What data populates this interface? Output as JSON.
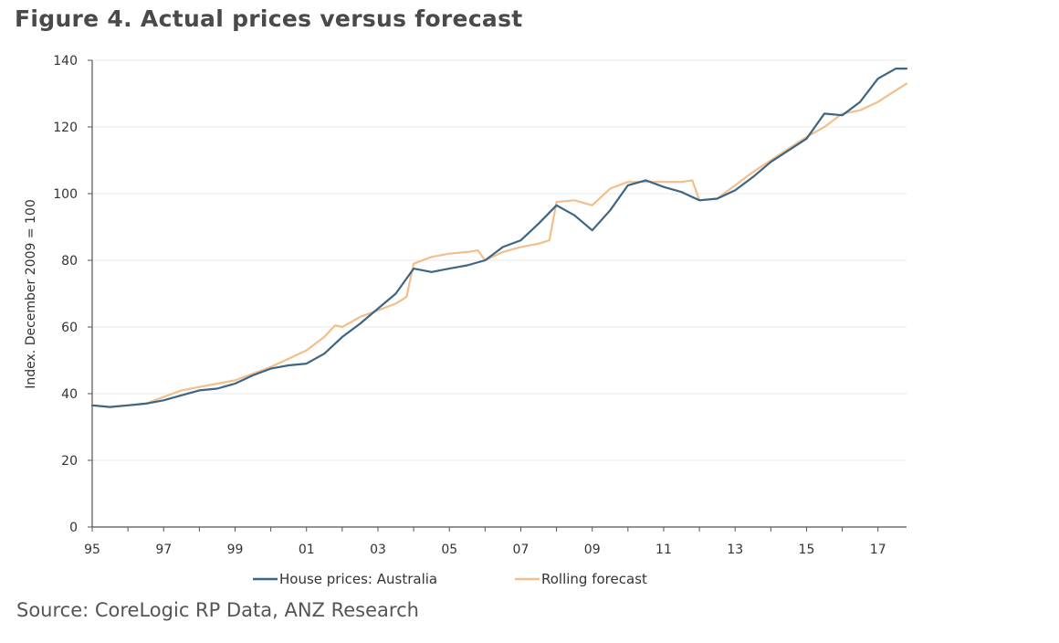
{
  "header": {
    "title": "Figure 4. Actual prices versus forecast"
  },
  "footer": {
    "source": "Source: CoreLogic RP Data, ANZ Research"
  },
  "chart_data": {
    "type": "line",
    "title": "Figure 4. Actual prices versus forecast",
    "xlabel": "",
    "ylabel": "Index. December 2009 = 100",
    "xlim": [
      1995,
      2017.8
    ],
    "ylim": [
      0,
      140
    ],
    "y_ticks": [
      0,
      20,
      40,
      60,
      80,
      100,
      120,
      140
    ],
    "x_ticks": [
      {
        "value": 1995,
        "label": "95"
      },
      {
        "value": 1997,
        "label": "97"
      },
      {
        "value": 1999,
        "label": "99"
      },
      {
        "value": 2001,
        "label": "01"
      },
      {
        "value": 2003,
        "label": "03"
      },
      {
        "value": 2005,
        "label": "05"
      },
      {
        "value": 2007,
        "label": "07"
      },
      {
        "value": 2009,
        "label": "09"
      },
      {
        "value": 2011,
        "label": "11"
      },
      {
        "value": 2013,
        "label": "13"
      },
      {
        "value": 2015,
        "label": "15"
      },
      {
        "value": 2017,
        "label": "17"
      }
    ],
    "grid": true,
    "legend_position": "bottom",
    "series": [
      {
        "name": "House prices: Australia",
        "color": "#3d6584",
        "points": [
          [
            1995.0,
            36.5
          ],
          [
            1995.5,
            36.0
          ],
          [
            1996.0,
            36.5
          ],
          [
            1996.5,
            37.0
          ],
          [
            1997.0,
            38.0
          ],
          [
            1997.5,
            39.5
          ],
          [
            1998.0,
            41.0
          ],
          [
            1998.5,
            41.5
          ],
          [
            1999.0,
            43.0
          ],
          [
            1999.5,
            45.5
          ],
          [
            2000.0,
            47.5
          ],
          [
            2000.5,
            48.5
          ],
          [
            2001.0,
            49.0
          ],
          [
            2001.5,
            52.0
          ],
          [
            2002.0,
            57.0
          ],
          [
            2002.5,
            61.0
          ],
          [
            2003.0,
            65.5
          ],
          [
            2003.5,
            70.0
          ],
          [
            2004.0,
            77.5
          ],
          [
            2004.5,
            76.5
          ],
          [
            2005.0,
            77.5
          ],
          [
            2005.5,
            78.5
          ],
          [
            2006.0,
            80.0
          ],
          [
            2006.5,
            84.0
          ],
          [
            2007.0,
            86.0
          ],
          [
            2007.5,
            91.0
          ],
          [
            2008.0,
            96.5
          ],
          [
            2008.5,
            93.5
          ],
          [
            2009.0,
            89.0
          ],
          [
            2009.5,
            95.0
          ],
          [
            2010.0,
            102.5
          ],
          [
            2010.5,
            104.0
          ],
          [
            2011.0,
            102.0
          ],
          [
            2011.5,
            100.5
          ],
          [
            2012.0,
            98.0
          ],
          [
            2012.5,
            98.5
          ],
          [
            2013.0,
            101.0
          ],
          [
            2013.5,
            105.0
          ],
          [
            2014.0,
            109.5
          ],
          [
            2014.5,
            113.0
          ],
          [
            2015.0,
            116.5
          ],
          [
            2015.5,
            124.0
          ],
          [
            2016.0,
            123.5
          ],
          [
            2016.5,
            127.5
          ],
          [
            2017.0,
            134.5
          ],
          [
            2017.5,
            137.5
          ],
          [
            2017.8,
            137.5
          ]
        ]
      },
      {
        "name": "Rolling forecast",
        "color": "#f2be8c",
        "points": [
          [
            1995.0,
            36.5
          ],
          [
            1995.5,
            36.0
          ],
          [
            1996.0,
            36.5
          ],
          [
            1996.5,
            37.0
          ],
          [
            1997.0,
            39.0
          ],
          [
            1997.5,
            41.0
          ],
          [
            1998.0,
            42.0
          ],
          [
            1998.5,
            43.0
          ],
          [
            1999.0,
            44.0
          ],
          [
            1999.5,
            46.0
          ],
          [
            2000.0,
            48.0
          ],
          [
            2000.5,
            50.5
          ],
          [
            2001.0,
            53.0
          ],
          [
            2001.5,
            57.0
          ],
          [
            2001.8,
            60.5
          ],
          [
            2002.0,
            60.0
          ],
          [
            2002.5,
            63.0
          ],
          [
            2003.0,
            65.0
          ],
          [
            2003.5,
            67.0
          ],
          [
            2003.8,
            69.0
          ],
          [
            2004.0,
            79.0
          ],
          [
            2004.5,
            81.0
          ],
          [
            2005.0,
            82.0
          ],
          [
            2005.5,
            82.5
          ],
          [
            2005.8,
            83.0
          ],
          [
            2006.0,
            80.0
          ],
          [
            2006.5,
            82.5
          ],
          [
            2007.0,
            84.0
          ],
          [
            2007.5,
            85.0
          ],
          [
            2007.8,
            86.0
          ],
          [
            2008.0,
            97.5
          ],
          [
            2008.5,
            98.0
          ],
          [
            2009.0,
            96.5
          ],
          [
            2009.5,
            101.5
          ],
          [
            2010.0,
            103.5
          ],
          [
            2010.5,
            103.5
          ],
          [
            2011.0,
            103.5
          ],
          [
            2011.5,
            103.5
          ],
          [
            2011.8,
            104.0
          ],
          [
            2012.0,
            98.0
          ],
          [
            2012.5,
            98.5
          ],
          [
            2013.0,
            102.5
          ],
          [
            2013.5,
            106.5
          ],
          [
            2014.0,
            110.0
          ],
          [
            2014.5,
            113.5
          ],
          [
            2015.0,
            117.0
          ],
          [
            2015.5,
            120.0
          ],
          [
            2016.0,
            124.0
          ],
          [
            2016.5,
            125.0
          ],
          [
            2017.0,
            127.5
          ],
          [
            2017.5,
            131.0
          ],
          [
            2017.8,
            133.0
          ]
        ]
      }
    ]
  }
}
